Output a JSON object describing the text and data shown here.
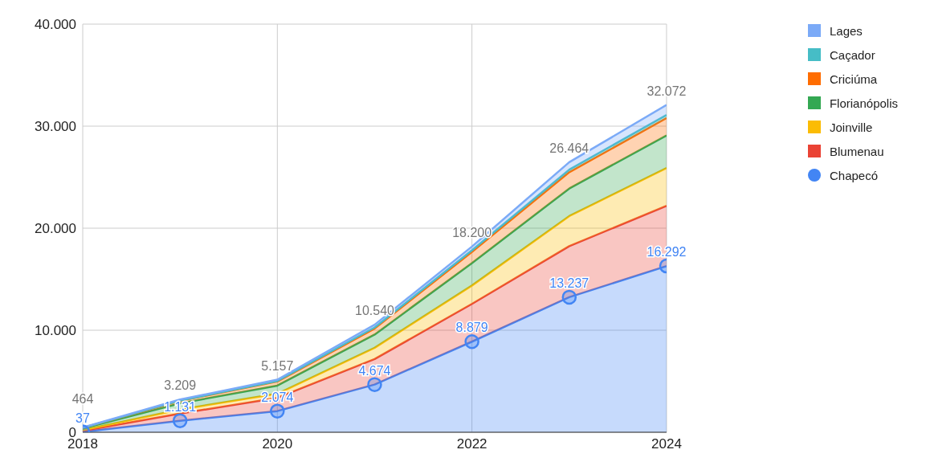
{
  "chart_data": {
    "type": "area",
    "stacked": true,
    "x": [
      2018,
      2019,
      2020,
      2021,
      2022,
      2023,
      2024
    ],
    "xlim": [
      2018,
      2024
    ],
    "xticks": [
      2018,
      2020,
      2022,
      2024
    ],
    "ylim": [
      0,
      40000
    ],
    "yticks": [
      0,
      {
        "value": 10000,
        "label": "10.000"
      },
      {
        "value": 20000,
        "label": "20.000"
      },
      {
        "value": 30000,
        "label": "30.000"
      },
      {
        "value": 40000,
        "label": "40.000"
      }
    ],
    "grid": true,
    "legend": "top right",
    "series": [
      {
        "name": "Chapecó",
        "color": "#4285f4",
        "marker": "circle",
        "values": [
          37,
          1131,
          2074,
          4674,
          8879,
          13237,
          16292
        ],
        "value_labels": [
          "37",
          "1.131",
          "2.074",
          "4.674",
          "8.879",
          "13.237",
          "16.292"
        ]
      },
      {
        "name": "Blumenau",
        "color": "#ea4335",
        "values": [
          100,
          700,
          1300,
          2500,
          3700,
          5000,
          5900
        ]
      },
      {
        "name": "Joinville",
        "color": "#fbbc04",
        "values": [
          80,
          400,
          400,
          1100,
          1800,
          2950,
          3700
        ]
      },
      {
        "name": "Florianópolis",
        "color": "#34a853",
        "values": [
          150,
          600,
          800,
          1300,
          2200,
          2700,
          3200
        ]
      },
      {
        "name": "Criciúma",
        "color": "#ff6d01",
        "values": [
          60,
          250,
          400,
          600,
          1100,
          1600,
          1700
        ]
      },
      {
        "name": "Caçador",
        "color": "#46bdc6",
        "values": [
          10,
          30,
          50,
          100,
          150,
          250,
          300
        ]
      },
      {
        "name": "Lages",
        "color": "#7baaf7",
        "values": [
          27,
          98,
          133,
          266,
          371,
          727,
          980
        ]
      }
    ],
    "totals": [
      "464",
      "3.209",
      "5.157",
      "10.540",
      "18.200",
      "26.464",
      "32.072"
    ]
  }
}
